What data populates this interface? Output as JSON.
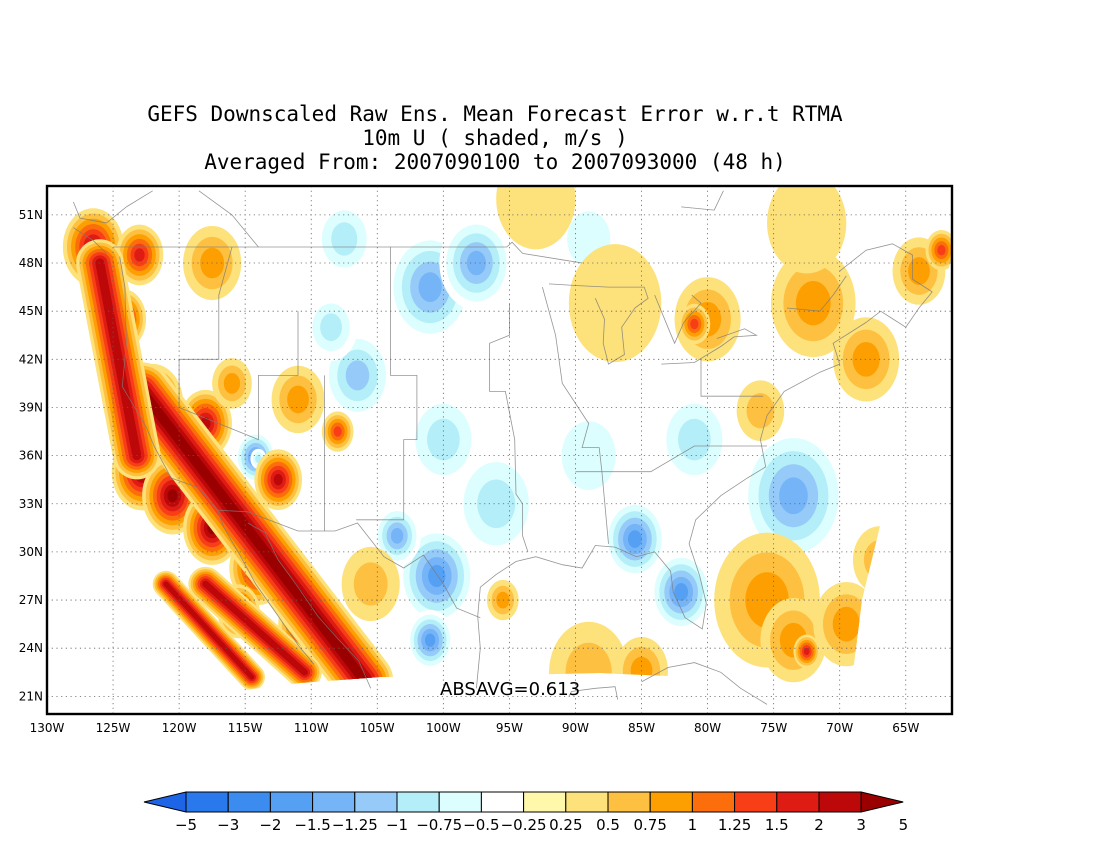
{
  "title": {
    "line1": "GEFS Downscaled Raw Ens. Mean Forecast Error w.r.t RTMA",
    "line2": "10m U ( shaded, m/s )",
    "line3": "Averaged From: 2007090100 to 2007093000 (48 h)"
  },
  "map": {
    "lat_labels": [
      "51N",
      "48N",
      "45N",
      "42N",
      "39N",
      "36N",
      "33N",
      "30N",
      "27N",
      "24N",
      "21N"
    ],
    "lat_values": [
      51,
      48,
      45,
      42,
      39,
      36,
      33,
      30,
      27,
      24,
      21
    ],
    "lon_labels": [
      "130W",
      "125W",
      "120W",
      "115W",
      "110W",
      "105W",
      "100W",
      "95W",
      "90W",
      "85W",
      "80W",
      "75W",
      "70W",
      "65W"
    ],
    "lon_values": [
      -130,
      -125,
      -120,
      -115,
      -110,
      -105,
      -100,
      -95,
      -90,
      -85,
      -80,
      -75,
      -70,
      -65
    ],
    "lon_range": [
      -130,
      -61.5
    ],
    "lat_range": [
      19.9,
      52.8
    ],
    "absavg": "ABSAVG=0.613"
  },
  "colorbar": {
    "levels": [
      "-5",
      "-3",
      "-2",
      "-1.5",
      "-1.25",
      "-1",
      "-0.75",
      "-0.5",
      "-0.25",
      "0.25",
      "0.5",
      "0.75",
      "1",
      "1.25",
      "1.5",
      "2",
      "3",
      "5"
    ],
    "colors": [
      "#1e64e6",
      "#2a79ec",
      "#3c8cf0",
      "#55a0f3",
      "#76b4f8",
      "#96caf8",
      "#b4eef8",
      "#dcfefe",
      "#ffffff",
      "#fff8aa",
      "#fde17a",
      "#fdc040",
      "#fd9f00",
      "#fc6e0c",
      "#f83e16",
      "#df1c14",
      "#bc0808",
      "#9b0000"
    ]
  },
  "field": {
    "cool": [
      {
        "lon": -114.2,
        "lat": 35.9,
        "r": 1.6,
        "v": -1.8
      },
      {
        "lon": -114.0,
        "lat": 35.8,
        "r": 0.6,
        "v": -1.0
      },
      {
        "lon": -106.5,
        "lat": 41.0,
        "r": 2.8,
        "v": -1.2
      },
      {
        "lon": -101.0,
        "lat": 46.5,
        "r": 3.4,
        "v": -1.3
      },
      {
        "lon": -97.5,
        "lat": 48.0,
        "r": 2.8,
        "v": -1.3
      },
      {
        "lon": -107.5,
        "lat": 49.5,
        "r": 2.4,
        "v": -1.0
      },
      {
        "lon": -100.5,
        "lat": 28.5,
        "r": 3.0,
        "v": -1.8
      },
      {
        "lon": -103.5,
        "lat": 31.0,
        "r": 1.8,
        "v": -1.4
      },
      {
        "lon": -101.0,
        "lat": 24.5,
        "r": 1.8,
        "v": -1.6
      },
      {
        "lon": -85.5,
        "lat": 30.8,
        "r": 2.4,
        "v": -1.8
      },
      {
        "lon": -82.0,
        "lat": 27.5,
        "r": 2.4,
        "v": -1.7
      },
      {
        "lon": -73.5,
        "lat": 33.5,
        "r": 4.2,
        "v": -1.5
      },
      {
        "lon": -81.0,
        "lat": 37.0,
        "r": 3.0,
        "v": -1.0
      },
      {
        "lon": -93.0,
        "lat": 39.0,
        "r": 4.5,
        "v": -0.5
      },
      {
        "lon": -89.0,
        "lat": 36.0,
        "r": 3.5,
        "v": -0.6
      },
      {
        "lon": -96.0,
        "lat": 33.0,
        "r": 3.5,
        "v": -0.8
      },
      {
        "lon": -100.0,
        "lat": 37.0,
        "r": 3.0,
        "v": -1.0
      },
      {
        "lon": -108.5,
        "lat": 44.0,
        "r": 2.0,
        "v": -1.0
      },
      {
        "lon": -89.0,
        "lat": 49.5,
        "r": 2.8,
        "v": -0.7
      }
    ],
    "warm": [
      {
        "lon": -122.8,
        "lat": 35.0,
        "r": 2.3,
        "v": 3.6
      },
      {
        "lon": -120.5,
        "lat": 33.5,
        "r": 2.3,
        "v": 3.2
      },
      {
        "lon": -117.5,
        "lat": 31.5,
        "r": 2.2,
        "v": 3.2
      },
      {
        "lon": -114.0,
        "lat": 29.0,
        "r": 2.2,
        "v": 3.0
      },
      {
        "lon": -110.5,
        "lat": 25.5,
        "r": 2.0,
        "v": 3.0
      },
      {
        "lon": -122.0,
        "lat": 39.3,
        "r": 2.3,
        "v": 3.0
      },
      {
        "lon": -124.3,
        "lat": 44.5,
        "r": 1.8,
        "v": 2.4
      },
      {
        "lon": -126.5,
        "lat": 49.0,
        "r": 2.3,
        "v": 2.6
      },
      {
        "lon": -123.0,
        "lat": 48.5,
        "r": 1.8,
        "v": 2.0
      },
      {
        "lon": -118.0,
        "lat": 38.0,
        "r": 2.0,
        "v": 2.3
      },
      {
        "lon": -116.0,
        "lat": 40.5,
        "r": 1.5,
        "v": 1.0
      },
      {
        "lon": -112.5,
        "lat": 34.5,
        "r": 1.8,
        "v": 2.3
      },
      {
        "lon": -115.5,
        "lat": 26.3,
        "r": 1.6,
        "v": 2.3
      },
      {
        "lon": -111.0,
        "lat": 39.5,
        "r": 2.0,
        "v": 1.0
      },
      {
        "lon": -108.0,
        "lat": 37.5,
        "r": 1.2,
        "v": 1.5
      },
      {
        "lon": -117.5,
        "lat": 48.0,
        "r": 2.2,
        "v": 0.8
      },
      {
        "lon": -105.5,
        "lat": 28.0,
        "r": 2.2,
        "v": 0.6
      },
      {
        "lon": -95.5,
        "lat": 27.0,
        "r": 1.2,
        "v": 0.8
      },
      {
        "lon": -89.0,
        "lat": 22.5,
        "r": 3.0,
        "v": 0.7
      },
      {
        "lon": -85.0,
        "lat": 22.6,
        "r": 2.0,
        "v": 1.0
      },
      {
        "lon": -93.0,
        "lat": 52.0,
        "r": 3.0,
        "v": 0.4
      },
      {
        "lon": -87.0,
        "lat": 45.5,
        "r": 3.5,
        "v": 0.5
      },
      {
        "lon": -80.0,
        "lat": 44.5,
        "r": 2.5,
        "v": 1.0
      },
      {
        "lon": -81.0,
        "lat": 44.2,
        "r": 1.2,
        "v": 1.5
      },
      {
        "lon": -72.0,
        "lat": 45.5,
        "r": 3.2,
        "v": 0.8
      },
      {
        "lon": -68.0,
        "lat": 42.0,
        "r": 2.5,
        "v": 0.8
      },
      {
        "lon": -64.0,
        "lat": 47.5,
        "r": 2.0,
        "v": 1.0
      },
      {
        "lon": -62.3,
        "lat": 48.8,
        "r": 1.2,
        "v": 1.5
      },
      {
        "lon": -72.5,
        "lat": 50.5,
        "r": 3.0,
        "v": 0.5
      },
      {
        "lon": -76.0,
        "lat": 38.8,
        "r": 1.8,
        "v": 0.7
      },
      {
        "lon": -75.5,
        "lat": 27.0,
        "r": 4.0,
        "v": 0.8
      },
      {
        "lon": -73.5,
        "lat": 24.5,
        "r": 2.5,
        "v": 1.0
      },
      {
        "lon": -69.5,
        "lat": 25.5,
        "r": 2.5,
        "v": 1.0
      },
      {
        "lon": -72.5,
        "lat": 23.8,
        "r": 1.0,
        "v": 1.6
      },
      {
        "lon": -67.0,
        "lat": 29.5,
        "r": 2.0,
        "v": 0.6
      }
    ],
    "bands": [
      {
        "x1": -122.8,
        "y1": 40.0,
        "x2": -106.0,
        "y2": 22.0,
        "w": 2.2,
        "v": 3.3
      },
      {
        "x1": -126.0,
        "y1": 48.0,
        "x2": -123.2,
        "y2": 36.0,
        "w": 1.8,
        "v": 2.8
      },
      {
        "x1": -118.0,
        "y1": 28.0,
        "x2": -110.5,
        "y2": 22.5,
        "w": 1.3,
        "v": 3.0
      },
      {
        "x1": -121.0,
        "y1": 28.0,
        "x2": -114.5,
        "y2": 22.2,
        "w": 1.0,
        "v": 2.3
      }
    ]
  }
}
